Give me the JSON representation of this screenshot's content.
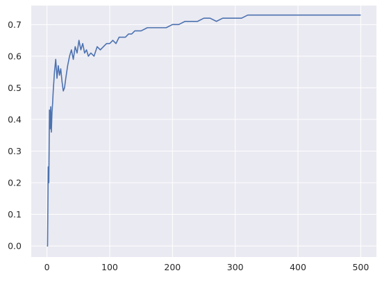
{
  "chart_data": {
    "type": "line",
    "title": "",
    "xlabel": "",
    "ylabel": "",
    "xlim": [
      -25,
      525
    ],
    "ylim": [
      -0.035,
      0.76
    ],
    "xticks": [
      0,
      100,
      200,
      300,
      400,
      500
    ],
    "xtick_labels": [
      "0",
      "100",
      "200",
      "300",
      "400",
      "500"
    ],
    "yticks": [
      0.0,
      0.1,
      0.2,
      0.3,
      0.4,
      0.5,
      0.6,
      0.7
    ],
    "ytick_labels": [
      "0.0",
      "0.1",
      "0.2",
      "0.3",
      "0.4",
      "0.5",
      "0.6",
      "0.7"
    ],
    "grid": true,
    "legend": "none",
    "colors": {
      "background": "#eaeaf2",
      "grid": "#ffffff",
      "line": "#4c72b0",
      "text": "#262626"
    },
    "series": [
      {
        "x": [
          0,
          1,
          2,
          3,
          4,
          5,
          6,
          7,
          8,
          9,
          10,
          11,
          12,
          14,
          16,
          18,
          20,
          22,
          24,
          26,
          28,
          30,
          33,
          36,
          39,
          42,
          45,
          48,
          51,
          54,
          57,
          60,
          63,
          66,
          70,
          75,
          80,
          85,
          90,
          95,
          100,
          105,
          110,
          115,
          120,
          125,
          130,
          135,
          140,
          145,
          150,
          160,
          170,
          180,
          190,
          200,
          210,
          220,
          230,
          240,
          250,
          260,
          270,
          280,
          290,
          300,
          310,
          320,
          330,
          340,
          350,
          360,
          370,
          380,
          390,
          400,
          410,
          420,
          430,
          440,
          450,
          460,
          470,
          480,
          490,
          500
        ],
        "y": [
          0.0,
          0.0,
          0.25,
          0.2,
          0.43,
          0.37,
          0.44,
          0.36,
          0.42,
          0.45,
          0.49,
          0.52,
          0.55,
          0.59,
          0.53,
          0.57,
          0.54,
          0.56,
          0.52,
          0.49,
          0.5,
          0.53,
          0.57,
          0.6,
          0.62,
          0.59,
          0.63,
          0.61,
          0.65,
          0.62,
          0.64,
          0.61,
          0.62,
          0.6,
          0.61,
          0.6,
          0.63,
          0.62,
          0.63,
          0.64,
          0.64,
          0.65,
          0.64,
          0.66,
          0.66,
          0.66,
          0.67,
          0.67,
          0.68,
          0.68,
          0.68,
          0.69,
          0.69,
          0.69,
          0.69,
          0.7,
          0.7,
          0.71,
          0.71,
          0.71,
          0.72,
          0.72,
          0.71,
          0.72,
          0.72,
          0.72,
          0.72,
          0.73,
          0.73,
          0.73,
          0.73,
          0.73,
          0.73,
          0.73,
          0.73,
          0.73,
          0.73,
          0.73,
          0.73,
          0.73,
          0.73,
          0.73,
          0.73,
          0.73,
          0.73,
          0.73
        ]
      }
    ]
  }
}
